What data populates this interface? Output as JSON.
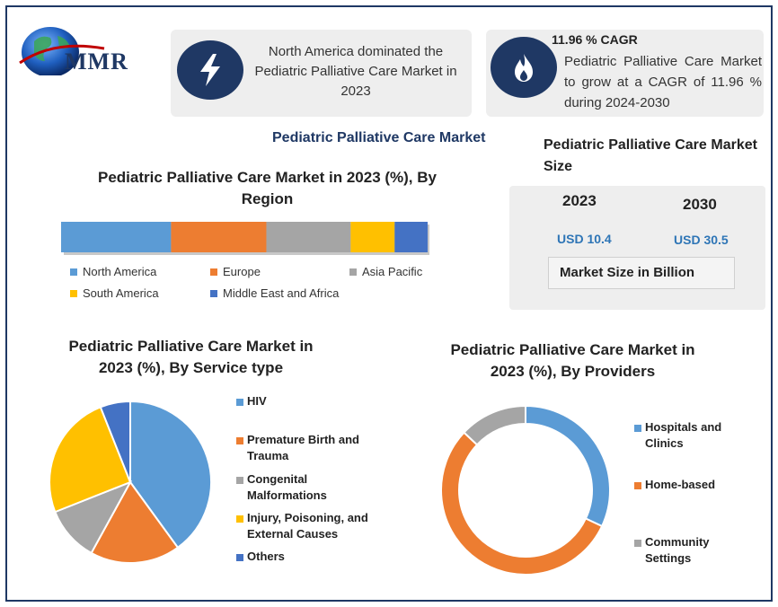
{
  "logo": {
    "text": "MMR"
  },
  "info1": {
    "text": "North America dominated the Pediatric Palliative Care Market in 2023",
    "icon": "lightning-icon"
  },
  "info2": {
    "heading": "11.96 % CAGR",
    "text": "Pediatric Palliative Care Market to grow at a CAGR of 11.96 % during 2024-2030",
    "icon": "flame-icon"
  },
  "main_title": "Pediatric Palliative Care Market",
  "market_size": {
    "title": "Pediatric Palliative Care Market Size",
    "year1": "2023",
    "year2": "2030",
    "value1": "USD 10.4",
    "value2": "USD 30.5",
    "unit_label": "Market Size in Billion"
  },
  "colors": {
    "blue": "#5b9bd5",
    "orange": "#ed7d31",
    "gray": "#a5a5a5",
    "yellow": "#ffc000",
    "darkblue": "#4472c4",
    "navy": "#1f3864",
    "link": "#2e75b6"
  },
  "chart_data": [
    {
      "type": "bar",
      "title": "Pediatric Palliative Care Market in 2023 (%), By Region",
      "stacked": true,
      "orientation": "horizontal",
      "series": [
        {
          "name": "North America",
          "value": 30,
          "color": "#5b9bd5"
        },
        {
          "name": "Europe",
          "value": 26,
          "color": "#ed7d31"
        },
        {
          "name": "Asia Pacific",
          "value": 23,
          "color": "#a5a5a5"
        },
        {
          "name": "South America",
          "value": 12,
          "color": "#ffc000"
        },
        {
          "name": "Middle East and Africa",
          "value": 9,
          "color": "#4472c4"
        }
      ],
      "legend_position": "bottom"
    },
    {
      "type": "pie",
      "title": "Pediatric Palliative Care Market in 2023 (%), By Service type",
      "slices": [
        {
          "name": "HIV",
          "value": 40,
          "color": "#5b9bd5"
        },
        {
          "name": "Premature Birth and Trauma",
          "value": 18,
          "color": "#ed7d31"
        },
        {
          "name": "Congenital Malformations",
          "value": 11,
          "color": "#a5a5a5"
        },
        {
          "name": "Injury, Poisoning, and External Causes",
          "value": 25,
          "color": "#ffc000"
        },
        {
          "name": "Others",
          "value": 6,
          "color": "#4472c4"
        }
      ],
      "legend_position": "right"
    },
    {
      "type": "pie",
      "variant": "donut",
      "title": "Pediatric Palliative Care Market in 2023 (%), By Providers",
      "slices": [
        {
          "name": "Hospitals and Clinics",
          "value": 32,
          "color": "#5b9bd5"
        },
        {
          "name": "Home-based",
          "value": 55,
          "color": "#ed7d31"
        },
        {
          "name": "Community Settings",
          "value": 13,
          "color": "#a5a5a5"
        }
      ],
      "legend_position": "right"
    }
  ]
}
